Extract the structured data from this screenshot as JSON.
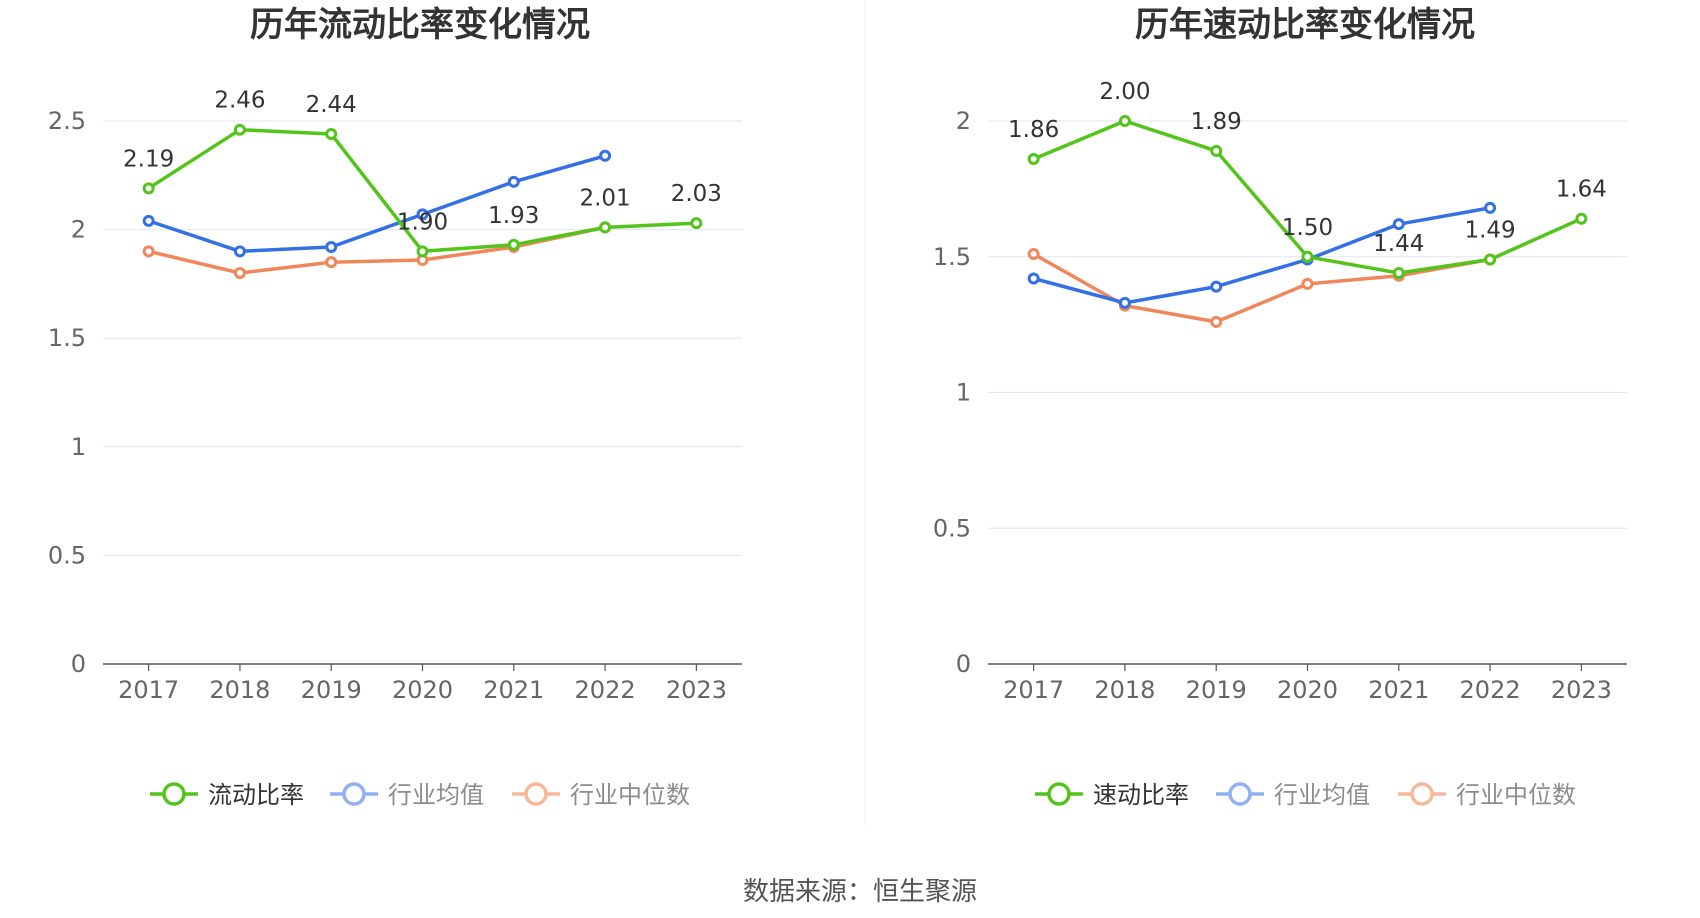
{
  "source": "数据来源：恒生聚源",
  "colors": {
    "main": "#52c41a",
    "avg": "#3370e6",
    "median": "#f0875a",
    "avg_legend": "#8fb0f5",
    "median_legend": "#f7b79b",
    "grid": "#e1e6f2",
    "axis": "#555555",
    "divider": "#eeeeee"
  },
  "chart_data": [
    {
      "type": "line",
      "title": "历年流动比率变化情况",
      "categories": [
        "2017",
        "2018",
        "2019",
        "2020",
        "2021",
        "2022",
        "2023"
      ],
      "ylim": [
        0,
        2.5
      ],
      "yticks": [
        0,
        0.5,
        1,
        1.5,
        2,
        2.5
      ],
      "ytick_labels": [
        "0",
        "0.5",
        "1",
        "1.5",
        "2",
        "2.5"
      ],
      "grid": true,
      "legend_position": "bottom",
      "series": [
        {
          "name": "流动比率",
          "key": "main",
          "values": [
            2.19,
            2.46,
            2.44,
            1.9,
            1.93,
            2.01,
            2.03
          ],
          "labels": [
            "2.19",
            "2.46",
            "2.44",
            "1.90",
            "1.93",
            "2.01",
            "2.03"
          ]
        },
        {
          "name": "行业均值",
          "key": "avg",
          "values": [
            2.04,
            1.9,
            1.92,
            2.07,
            2.22,
            2.34,
            null
          ]
        },
        {
          "name": "行业中位数",
          "key": "median",
          "values": [
            1.9,
            1.8,
            1.85,
            1.86,
            1.92,
            2.01,
            null
          ]
        }
      ]
    },
    {
      "type": "line",
      "title": "历年速动比率变化情况",
      "categories": [
        "2017",
        "2018",
        "2019",
        "2020",
        "2021",
        "2022",
        "2023"
      ],
      "ylim": [
        0,
        2
      ],
      "yticks": [
        0,
        0.5,
        1,
        1.5,
        2
      ],
      "ytick_labels": [
        "0",
        "0.5",
        "1",
        "1.5",
        "2"
      ],
      "grid": true,
      "legend_position": "bottom",
      "series": [
        {
          "name": "速动比率",
          "key": "main",
          "values": [
            1.86,
            2.0,
            1.89,
            1.5,
            1.44,
            1.49,
            1.64
          ],
          "labels": [
            "1.86",
            "2.00",
            "1.89",
            "1.50",
            "1.44",
            "1.49",
            "1.64"
          ]
        },
        {
          "name": "行业均值",
          "key": "avg",
          "values": [
            1.42,
            1.33,
            1.39,
            1.49,
            1.62,
            1.68,
            null
          ]
        },
        {
          "name": "行业中位数",
          "key": "median",
          "values": [
            1.51,
            1.32,
            1.26,
            1.4,
            1.43,
            1.49,
            null
          ]
        }
      ]
    }
  ]
}
